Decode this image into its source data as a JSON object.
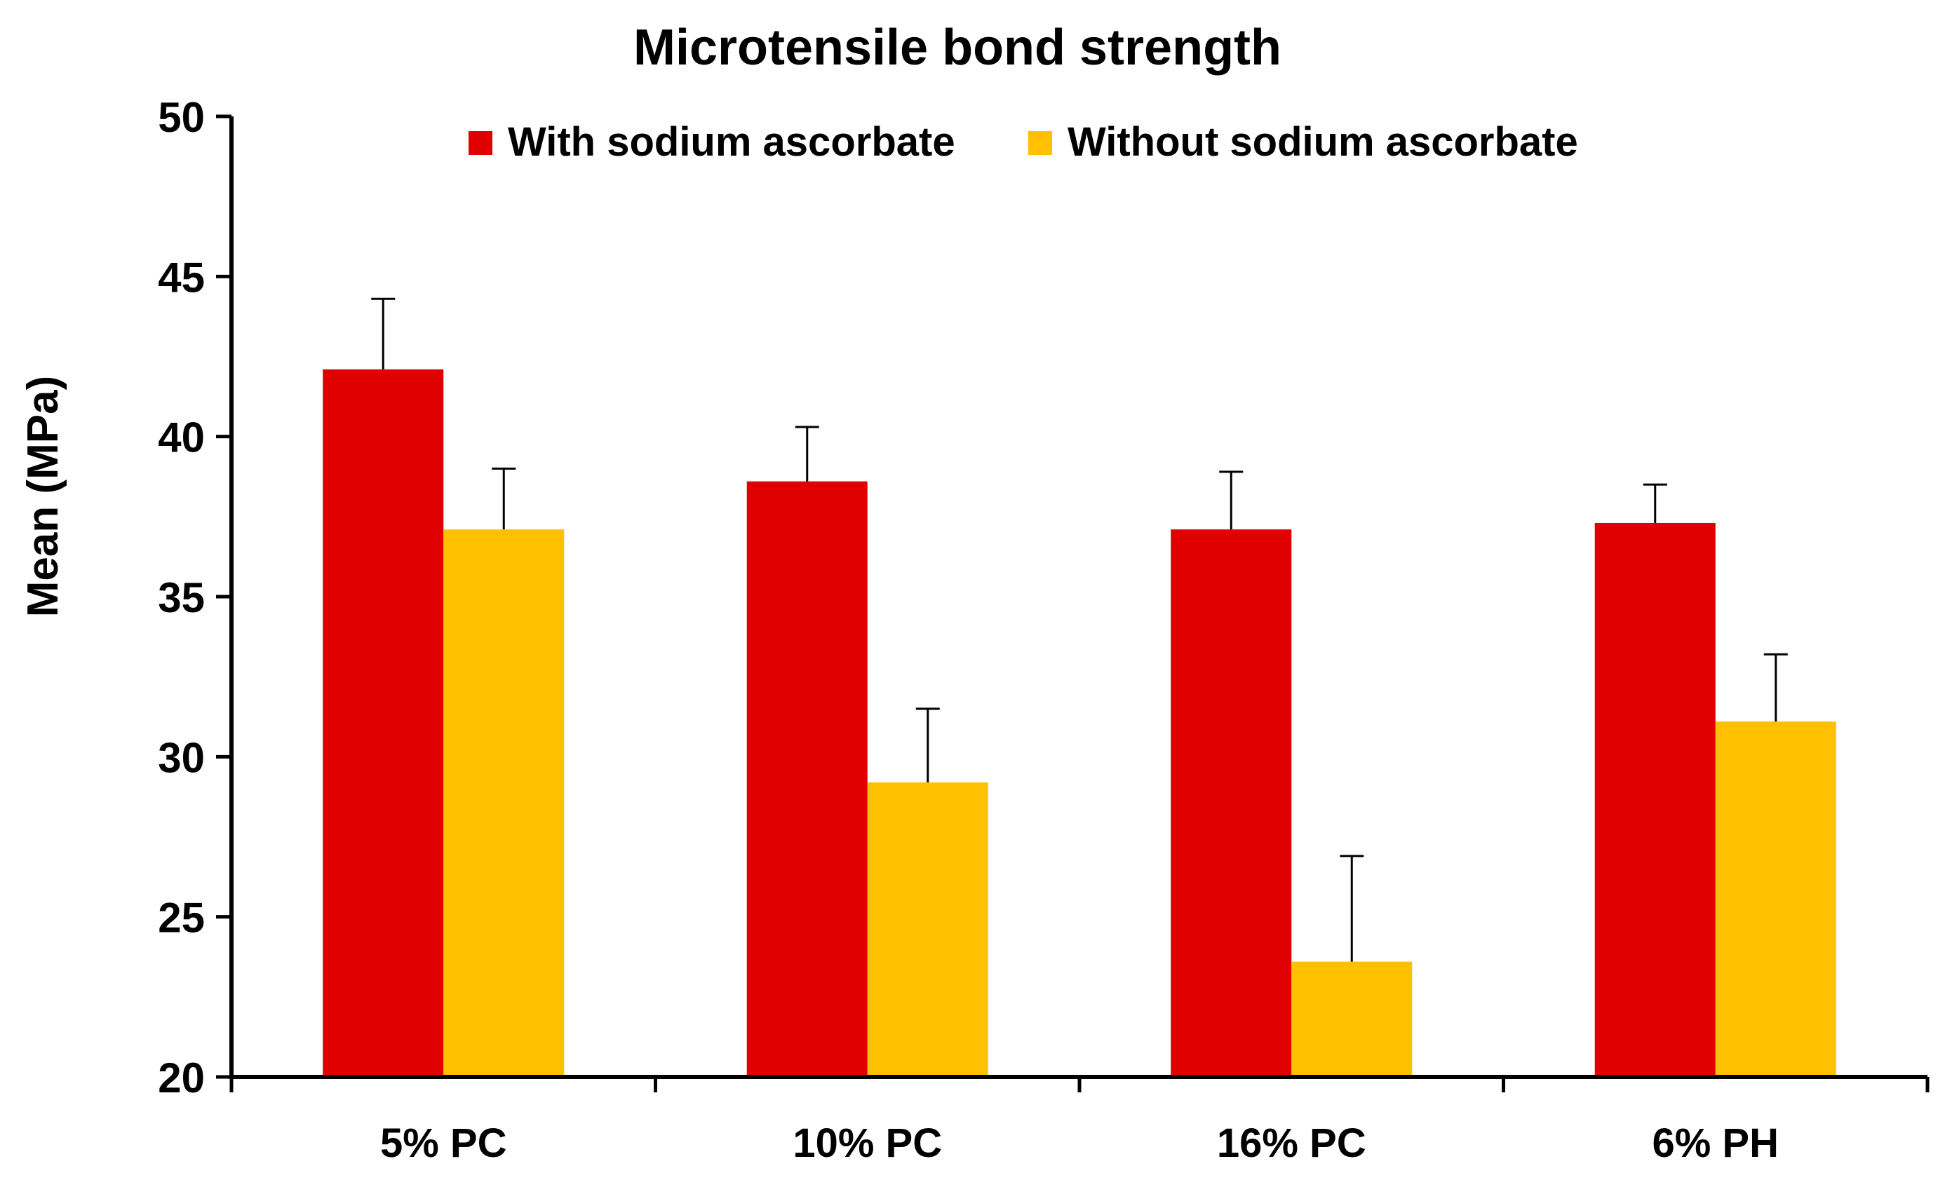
{
  "chart_data": {
    "type": "bar",
    "title": "Microtensile bond strength",
    "xlabel": "",
    "ylabel": "Mean (MPa)",
    "ylim": [
      20,
      50
    ],
    "yticks": [
      20,
      25,
      30,
      35,
      40,
      45,
      50
    ],
    "categories": [
      "5% PC",
      "10% PC",
      "16% PC",
      "6% PH"
    ],
    "series": [
      {
        "name": "With sodium ascorbate",
        "color": "#e00000",
        "values": [
          42.1,
          38.6,
          37.1,
          37.3
        ],
        "error": [
          2.2,
          1.7,
          1.8,
          1.2
        ]
      },
      {
        "name": "Without sodium ascorbate",
        "color": "#ffc000",
        "values": [
          37.1,
          29.2,
          23.6,
          31.1
        ],
        "error": [
          1.9,
          2.3,
          3.3,
          2.1
        ]
      }
    ],
    "legend_position": "top",
    "grid": false,
    "error_bars": "upper"
  }
}
